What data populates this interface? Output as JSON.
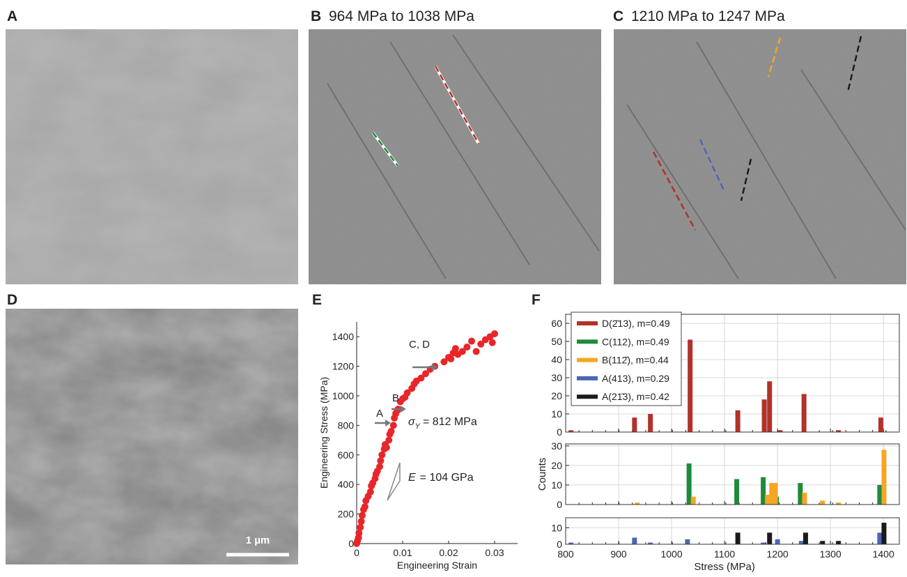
{
  "panels": [
    {
      "label": "A"
    },
    {
      "label": "B",
      "caption": "964 MPa to 1038 MPa"
    },
    {
      "label": "C",
      "caption": "1210 MPa to 1247 MPa"
    },
    {
      "label": "D",
      "scale_bar": "1 µm"
    },
    {
      "label": "E"
    },
    {
      "label": "F"
    }
  ],
  "chart_data": [
    {
      "type": "scatter",
      "x_label": "Engineering Strain",
      "y_label": "Engineering Stress (MPa)",
      "annotations": [
        "A",
        "B",
        "C, D"
      ],
      "yield": {
        "symbol": "σ",
        "subscript": "Y",
        "text": "= 812 MPa"
      },
      "modulus": {
        "symbol": "E",
        "text": "= 104 GPa"
      },
      "color": "#e8262a",
      "x": [
        0,
        0.0002,
        0.0004,
        0.0005,
        0.0008,
        0.001,
        0.0012,
        0.0015,
        0.0018,
        0.002,
        0.0025,
        0.003,
        0.0032,
        0.0035,
        0.004,
        0.0042,
        0.0045,
        0.005,
        0.0052,
        0.0055,
        0.006,
        0.0062,
        0.0065,
        0.007,
        0.0072,
        0.0075,
        0.008,
        0.0082,
        0.0085,
        0.0088,
        0.009,
        0.0095,
        0.01,
        0.0105,
        0.011,
        0.012,
        0.0125,
        0.013,
        0.014,
        0.015,
        0.016,
        0.017,
        0.019,
        0.02,
        0.0205,
        0.021,
        0.0215,
        0.022,
        0.023,
        0.024,
        0.025,
        0.026,
        0.027,
        0.028,
        0.029,
        0.0295,
        0.03
      ],
      "values": [
        0,
        20,
        40,
        70,
        110,
        150,
        190,
        230,
        250,
        290,
        320,
        350,
        390,
        410,
        440,
        470,
        490,
        520,
        560,
        600,
        640,
        670,
        650,
        700,
        740,
        760,
        800,
        850,
        880,
        900,
        910,
        960,
        980,
        990,
        1020,
        1050,
        1080,
        1100,
        1120,
        1150,
        1180,
        1200,
        1230,
        1260,
        1250,
        1290,
        1320,
        1280,
        1300,
        1330,
        1370,
        1300,
        1350,
        1380,
        1400,
        1360,
        1420
      ],
      "xlim": [
        0,
        0.035
      ],
      "xticks": [
        0,
        0.01,
        0.02,
        0.03
      ],
      "ylim": [
        0,
        1500
      ],
      "yticks": [
        0,
        200,
        400,
        600,
        800,
        1000,
        1200,
        1400
      ]
    },
    {
      "type": "bar",
      "legend": "upper left",
      "grid": true,
      "series": [
        {
          "name": "D(2̄13), m=0.49",
          "color": "#b2312b",
          "x": [
            810,
            930,
            960,
            1035,
            1125,
            1175,
            1185,
            1205,
            1250,
            1315,
            1395
          ],
          "values": [
            1,
            8,
            10,
            51,
            12,
            18,
            28,
            1,
            21,
            1,
            8
          ]
        }
      ],
      "ylim": [
        0,
        65
      ],
      "yticks": [
        0,
        10,
        20,
        30,
        40,
        50,
        60
      ]
    },
    {
      "type": "bar",
      "grid": true,
      "y_label": "Counts",
      "series": [
        {
          "name": "C(112), m=0.49",
          "color": "#1f8a3b",
          "x": [
            1033,
            1123,
            1173,
            1198,
            1243,
            1393
          ],
          "values": [
            21,
            13,
            14,
            4,
            11,
            10
          ]
        },
        {
          "name": "B(112̄), m=0.44",
          "color": "#f5a623",
          "x": [
            935,
            1041,
            1181,
            1189,
            1196,
            1251,
            1285,
            1315,
            1401
          ],
          "values": [
            1,
            4,
            5,
            11,
            11,
            6,
            2,
            1,
            28
          ]
        }
      ],
      "ylim": [
        0,
        31
      ],
      "yticks": [
        0,
        10,
        20,
        30
      ]
    },
    {
      "type": "bar",
      "grid": true,
      "x_label": "Stress (MPa)",
      "series": [
        {
          "name": "A(413), m=0.29",
          "color": "#4a68b5",
          "x": [
            810,
            930,
            960,
            1030,
            1173,
            1200,
            1245,
            1393
          ],
          "values": [
            1,
            4,
            1,
            3,
            1,
            3,
            2,
            7
          ]
        },
        {
          "name": "A(21̄3), m=0.42",
          "color": "#1a1a1a",
          "x": [
            1125,
            1185,
            1253,
            1285,
            1315,
            1401
          ],
          "values": [
            7,
            7,
            7,
            2,
            2,
            13
          ]
        }
      ],
      "xlim": [
        800,
        1430
      ],
      "xticks": [
        800,
        900,
        1000,
        1100,
        1200,
        1300,
        1400
      ],
      "ylim": [
        0,
        16
      ],
      "yticks": [
        0,
        10
      ]
    }
  ]
}
